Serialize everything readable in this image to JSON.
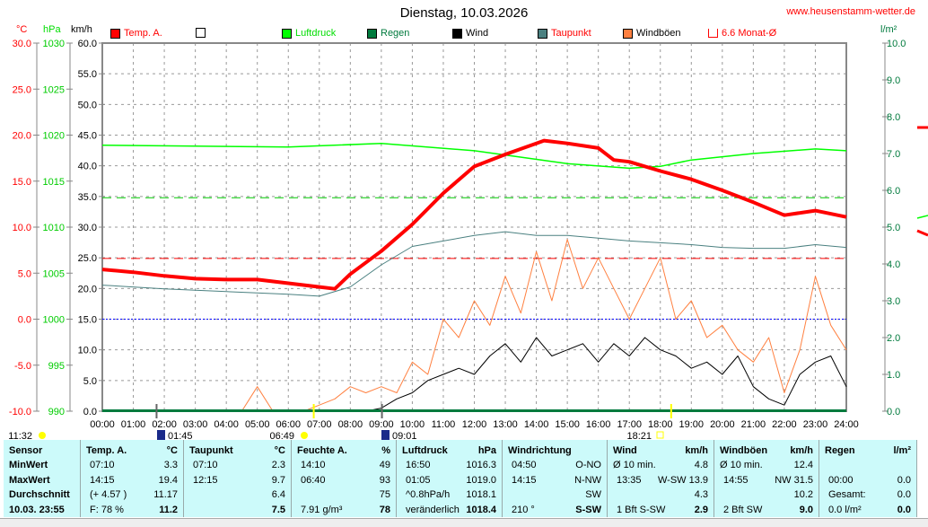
{
  "header": {
    "title": "Dienstag, 10.03.2026",
    "site": "www.heusenstamm-wetter.de"
  },
  "legend": [
    {
      "label": "Temp. A.",
      "color": "#ff0000",
      "text_color": "#ff0000"
    },
    {
      "label": "",
      "color": "#ffffff",
      "text_color": "#000000"
    },
    {
      "label": "Luftdruck",
      "color": "#00ff00",
      "text_color": "#00dd00"
    },
    {
      "label": "Regen",
      "color": "#007a3d",
      "text_color": "#007a3d"
    },
    {
      "label": "Wind",
      "color": "#000000",
      "text_color": "#000000"
    },
    {
      "label": "Taupunkt",
      "color": "#4a8080",
      "text_color": "#ff0000"
    },
    {
      "label": "Windböen",
      "color": "#ff8040",
      "text_color": "#000000"
    },
    {
      "label": "6.6 Monat-Ø",
      "color": "none",
      "text_color": "#ff0000"
    }
  ],
  "units": {
    "temp": "°C",
    "pressure": "hPa",
    "wind": "km/h",
    "rain": "l/m²"
  },
  "chart_data": {
    "type": "line",
    "title": "Dienstag, 10.03.2026",
    "x_ticks": [
      "00:00",
      "01:00",
      "02:00",
      "03:00",
      "04:00",
      "05:00",
      "06:00",
      "07:00",
      "08:00",
      "09:00",
      "10:00",
      "11:00",
      "12:00",
      "13:00",
      "14:00",
      "15:00",
      "16:00",
      "17:00",
      "18:00",
      "19:00",
      "20:00",
      "21:00",
      "22:00",
      "23:00",
      "24:00"
    ],
    "xlim_hours": [
      0,
      24
    ],
    "axes": {
      "temp": {
        "ticks": [
          "30.0",
          "25.0",
          "20.0",
          "15.0",
          "10.0",
          "5.0",
          "0.0",
          "-5.0",
          "-10.0"
        ],
        "range": [
          -10,
          30
        ]
      },
      "pressure": {
        "ticks": [
          "1030",
          "1025",
          "1020",
          "1015",
          "1010",
          "1005",
          "1000",
          "995",
          "990"
        ],
        "range": [
          990,
          1030
        ]
      },
      "wind": {
        "ticks": [
          "60.0",
          "55.0",
          "50.0",
          "45.0",
          "40.0",
          "35.0",
          "30.0",
          "25.0",
          "20.0",
          "15.0",
          "10.0",
          "5.0",
          "0.0"
        ],
        "range": [
          0,
          60
        ]
      },
      "rain": {
        "ticks": [
          "10.0",
          "9.0",
          "8.0",
          "7.0",
          "6.0",
          "5.0",
          "4.0",
          "3.0",
          "2.0",
          "1.0",
          "0.0"
        ],
        "range": [
          0,
          10
        ]
      }
    },
    "reference_lines": {
      "temp_month_avg": 6.6,
      "pressure_month_avg": 1013.2,
      "freezing": 0
    },
    "series": [
      {
        "name": "Temp. A.",
        "axis": "temp",
        "color": "#ff0000",
        "x_hours": [
          0,
          1,
          2,
          3,
          4,
          5,
          6,
          7,
          7.5,
          8,
          9,
          10,
          11,
          12,
          13,
          14,
          14.25,
          15,
          16,
          16.5,
          17,
          18,
          19,
          20,
          21,
          22,
          23,
          24
        ],
        "values": [
          5.4,
          5.1,
          4.7,
          4.4,
          4.3,
          4.3,
          3.9,
          3.5,
          3.3,
          4.9,
          7.4,
          10.3,
          13.7,
          16.6,
          17.9,
          19.1,
          19.4,
          19.1,
          18.6,
          17.3,
          17.1,
          16.1,
          15.2,
          14.0,
          12.7,
          11.3,
          11.8,
          11.1
        ]
      },
      {
        "name": "Taupunkt",
        "axis": "temp",
        "color": "#4a8080",
        "x_hours": [
          0,
          2,
          4,
          6,
          7,
          8,
          9,
          10,
          11,
          12,
          13,
          14,
          15,
          16,
          17,
          18,
          19,
          20,
          21,
          22,
          23,
          24
        ],
        "values": [
          3.7,
          3.3,
          3.0,
          2.7,
          2.5,
          3.5,
          5.9,
          7.9,
          8.5,
          9.1,
          9.5,
          9.1,
          9.1,
          8.8,
          8.5,
          8.3,
          8.1,
          7.8,
          7.7,
          7.7,
          8.1,
          7.8
        ]
      },
      {
        "name": "Luftdruck",
        "axis": "pressure",
        "color": "#00ff00",
        "x_hours": [
          0,
          3,
          6,
          9,
          12,
          15,
          17,
          18,
          19,
          21,
          23,
          24
        ],
        "values": [
          1018.9,
          1018.8,
          1018.7,
          1019.1,
          1018.3,
          1016.9,
          1016.4,
          1016.6,
          1017.3,
          1018.0,
          1018.5,
          1018.3
        ]
      },
      {
        "name": "Wind",
        "axis": "wind",
        "color": "#000000",
        "step_hours": 0.5,
        "values": [
          0,
          0,
          0,
          0,
          0,
          0,
          0,
          0,
          0,
          0,
          0,
          0,
          0,
          0,
          0,
          0,
          0,
          0,
          0.5,
          2,
          3,
          5,
          6,
          7,
          6,
          9,
          11,
          8,
          12,
          9,
          10,
          11,
          8,
          11,
          9,
          12,
          10,
          9,
          7,
          8,
          6,
          9,
          4,
          2,
          1,
          6,
          8,
          9,
          4
        ]
      },
      {
        "name": "Windböen",
        "axis": "wind",
        "color": "#ff8040",
        "step_hours": 0.5,
        "values": [
          0,
          0,
          0,
          0,
          0,
          0,
          0,
          0,
          0,
          0,
          4,
          0,
          0,
          0,
          1,
          2,
          4,
          3,
          4,
          3,
          8,
          6,
          15,
          12,
          18,
          14,
          22,
          16,
          26,
          18,
          28,
          20,
          25,
          20,
          15,
          20,
          25,
          15,
          18,
          12,
          14,
          10,
          8,
          12,
          3,
          10,
          22,
          14,
          10
        ]
      },
      {
        "name": "Regen",
        "axis": "rain",
        "color": "#007a3d",
        "step_hours": 24,
        "values": [
          0,
          0
        ]
      }
    ],
    "markers": [
      {
        "label": "11:32",
        "icon": "moon-phase-icon"
      },
      {
        "label": "01:45",
        "icon": "moonrise-icon"
      },
      {
        "label": "06:49",
        "icon": "sunrise-icon"
      },
      {
        "label": "09:01",
        "icon": "moonset-icon"
      },
      {
        "label": "18:21",
        "icon": "sunset-icon"
      }
    ]
  },
  "table": {
    "sensor": {
      "h": "Sensor",
      "r": [
        "MinWert",
        "MaxWert",
        "Durchschnitt",
        "10.03. 23:55"
      ]
    },
    "temp": {
      "h": "Temp. A.",
      "u": "°C",
      "t": [
        "07:10",
        "14:15",
        "(+ 4.57 )",
        "F: 78 %"
      ],
      "v": [
        "3.3",
        "19.4",
        "11.17",
        "11.2"
      ]
    },
    "dew": {
      "h": "Taupunkt",
      "u": "°C",
      "t": [
        "07:10",
        "12:15",
        "",
        ""
      ],
      "v": [
        "2.3",
        "9.7",
        "6.4",
        "7.5"
      ]
    },
    "hum": {
      "h": "Feuchte A.",
      "u": "%",
      "t": [
        "14:10",
        "06:40",
        "",
        "7.91 g/m³"
      ],
      "v": [
        "49",
        "93",
        "75",
        "78"
      ]
    },
    "press": {
      "h": "Luftdruck",
      "u": "hPa",
      "t": [
        "16:50",
        "01:05",
        "^0.8hPa/h",
        "veränderlich"
      ],
      "v": [
        "1016.3",
        "1019.0",
        "1018.1",
        "1018.4"
      ]
    },
    "dir": {
      "h": "Windrichtung",
      "u": "",
      "t": [
        "04:50",
        "14:15",
        "",
        "210 °"
      ],
      "v": [
        "O-NO",
        "N-NW",
        "SW",
        "S-SW"
      ]
    },
    "wind": {
      "h": "Wind",
      "u": "km/h",
      "t": [
        "Ø 10 min.",
        "13:35",
        "",
        "1 Bft S-SW"
      ],
      "v": [
        "4.8",
        "W-SW 13.9",
        "4.3",
        "2.9"
      ]
    },
    "gust": {
      "h": "Windböen",
      "u": "km/h",
      "t": [
        "Ø 10 min.",
        "14:55",
        "",
        "2 Bft SW"
      ],
      "v": [
        "12.4",
        "NW 31.5",
        "10.2",
        "9.0"
      ]
    },
    "rain": {
      "h": "Regen",
      "u": "l/m²",
      "t": [
        "",
        "00:00",
        "Gesamt:",
        "0.0 l/m²"
      ],
      "v": [
        "",
        "0.0",
        "0.0",
        "0.0"
      ]
    }
  }
}
